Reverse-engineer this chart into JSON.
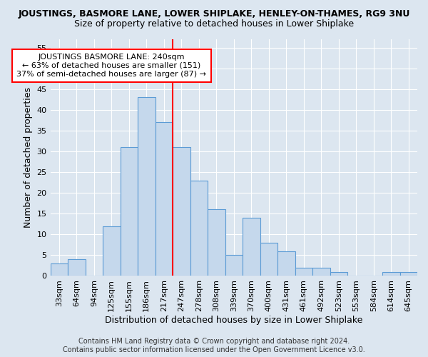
{
  "title": "JOUSTINGS, BASMORE LANE, LOWER SHIPLAKE, HENLEY-ON-THAMES, RG9 3NU",
  "subtitle": "Size of property relative to detached houses in Lower Shiplake",
  "xlabel": "Distribution of detached houses by size in Lower Shiplake",
  "ylabel": "Number of detached properties",
  "categories": [
    "33sqm",
    "64sqm",
    "94sqm",
    "125sqm",
    "155sqm",
    "186sqm",
    "217sqm",
    "247sqm",
    "278sqm",
    "308sqm",
    "339sqm",
    "370sqm",
    "400sqm",
    "431sqm",
    "461sqm",
    "492sqm",
    "523sqm",
    "553sqm",
    "584sqm",
    "614sqm",
    "645sqm"
  ],
  "values": [
    3,
    4,
    0,
    12,
    31,
    43,
    37,
    31,
    23,
    16,
    5,
    14,
    8,
    6,
    2,
    2,
    1,
    0,
    0,
    1,
    1
  ],
  "bar_color": "#c5d8ec",
  "bar_edge_color": "#5b9bd5",
  "reference_line_idx": 7,
  "annotation_text": "JOUSTINGS BASMORE LANE: 240sqm\n← 63% of detached houses are smaller (151)\n37% of semi-detached houses are larger (87) →",
  "ylim": [
    0,
    57
  ],
  "yticks": [
    0,
    5,
    10,
    15,
    20,
    25,
    30,
    35,
    40,
    45,
    50,
    55
  ],
  "bg_color": "#dce6f0",
  "plot_bg_color": "#dce6f0",
  "grid_color": "#ffffff",
  "footer_text": "Contains HM Land Registry data © Crown copyright and database right 2024.\nContains public sector information licensed under the Open Government Licence v3.0.",
  "title_fontsize": 9,
  "subtitle_fontsize": 9,
  "label_fontsize": 9,
  "tick_fontsize": 8,
  "annot_fontsize": 8,
  "footer_fontsize": 7
}
